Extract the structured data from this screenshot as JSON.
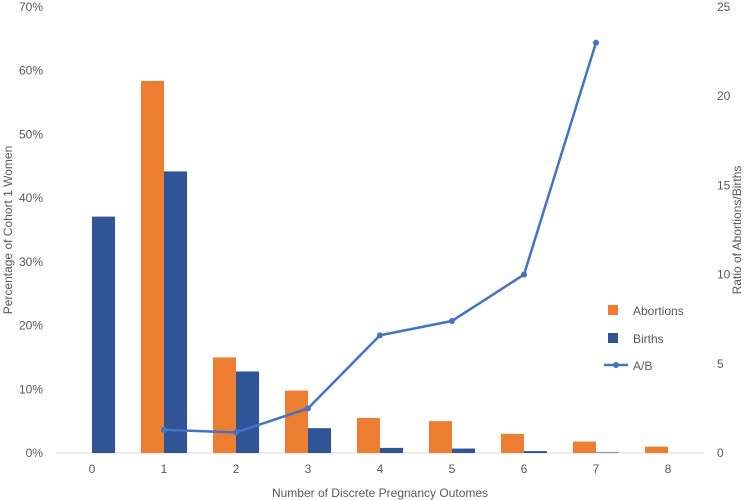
{
  "chart_data": {
    "type": "bar",
    "categories": [
      "0",
      "1",
      "2",
      "3",
      "4",
      "5",
      "6",
      "7",
      "8"
    ],
    "series": [
      {
        "name": "Abortions",
        "type": "bar",
        "axis": "left",
        "color": "#ED7D31",
        "values": [
          0,
          58.4,
          15.0,
          9.8,
          5.5,
          5.0,
          3.0,
          1.8,
          1.0
        ]
      },
      {
        "name": "Births",
        "type": "bar",
        "axis": "left",
        "color": "#2F5597",
        "values": [
          37.1,
          44.2,
          12.8,
          3.9,
          0.8,
          0.7,
          0.3,
          0.1,
          0
        ]
      },
      {
        "name": "A/B",
        "type": "line",
        "axis": "right",
        "color": "#4472C4",
        "values": [
          null,
          1.3,
          1.15,
          2.5,
          6.6,
          7.4,
          10.0,
          23.0,
          null
        ]
      }
    ],
    "xlabel": "Number of Discrete Pregnancy Outomes",
    "ylabel": "Percentage of Cohort 1 Women",
    "y2label": "Ratio of Abortions/Births",
    "ylim": [
      0,
      70
    ],
    "y_ticks": [
      "0%",
      "10%",
      "20%",
      "30%",
      "40%",
      "50%",
      "60%",
      "70%"
    ],
    "y2lim": [
      0,
      25
    ],
    "y2_ticks": [
      "0",
      "5",
      "10",
      "15",
      "20",
      "25"
    ],
    "grid": false,
    "legend_position": "right",
    "legend": [
      "Abortions",
      "Births",
      "A/B"
    ]
  }
}
